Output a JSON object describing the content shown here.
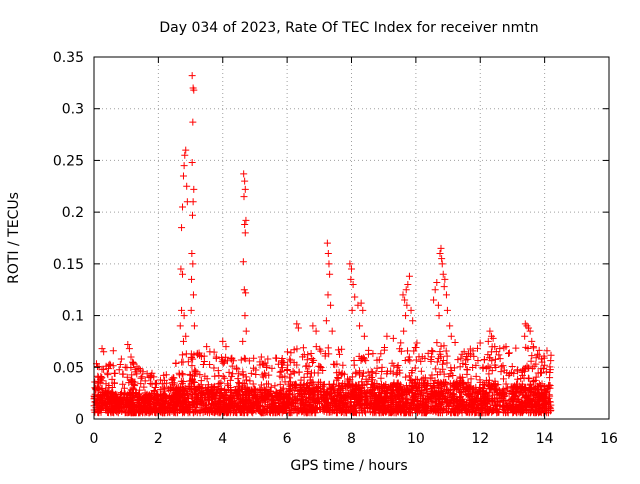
{
  "chart_data": {
    "type": "scatter",
    "title": "Day 034 of 2023, Rate Of TEC Index for receiver nmtn",
    "xlabel": "GPS time / hours",
    "ylabel": "ROTI / TECUs",
    "xlim": [
      0,
      16
    ],
    "ylim": [
      0,
      0.35
    ],
    "xticks": [
      0,
      2,
      4,
      6,
      8,
      10,
      12,
      14,
      16
    ],
    "yticks": [
      0,
      0.05,
      0.1,
      0.15,
      0.2,
      0.25,
      0.3,
      0.35
    ],
    "xtick_labels": [
      "0",
      "2",
      "4",
      "6",
      "8",
      "10",
      "12",
      "14",
      "16"
    ],
    "ytick_labels": [
      "0",
      "0.05",
      "0.1",
      "0.15",
      "0.2",
      "0.25",
      "0.3",
      "0.35"
    ],
    "grid": true,
    "marker": "+",
    "color": "#ff0000",
    "series": [
      {
        "name": "ROTI",
        "points": [
          [
            2.7,
            0.145
          ],
          [
            2.72,
            0.185
          ],
          [
            2.75,
            0.205
          ],
          [
            2.78,
            0.235
          ],
          [
            2.8,
            0.245
          ],
          [
            2.82,
            0.255
          ],
          [
            2.85,
            0.26
          ],
          [
            2.88,
            0.225
          ],
          [
            2.9,
            0.21
          ],
          [
            2.75,
            0.14
          ],
          [
            2.72,
            0.105
          ],
          [
            2.8,
            0.1
          ],
          [
            2.68,
            0.09
          ],
          [
            2.85,
            0.08
          ],
          [
            2.78,
            0.075
          ],
          [
            3.05,
            0.332
          ],
          [
            3.08,
            0.32
          ],
          [
            3.1,
            0.318
          ],
          [
            3.07,
            0.287
          ],
          [
            3.05,
            0.248
          ],
          [
            3.1,
            0.222
          ],
          [
            3.08,
            0.21
          ],
          [
            3.06,
            0.197
          ],
          [
            3.04,
            0.16
          ],
          [
            3.07,
            0.15
          ],
          [
            3.03,
            0.135
          ],
          [
            3.09,
            0.12
          ],
          [
            3.02,
            0.105
          ],
          [
            3.12,
            0.09
          ],
          [
            4.65,
            0.237
          ],
          [
            4.68,
            0.23
          ],
          [
            4.7,
            0.222
          ],
          [
            4.66,
            0.215
          ],
          [
            4.72,
            0.192
          ],
          [
            4.68,
            0.188
          ],
          [
            4.7,
            0.18
          ],
          [
            4.64,
            0.152
          ],
          [
            4.67,
            0.125
          ],
          [
            4.71,
            0.122
          ],
          [
            4.69,
            0.1
          ],
          [
            4.73,
            0.085
          ],
          [
            4.62,
            0.075
          ],
          [
            7.25,
            0.17
          ],
          [
            7.28,
            0.16
          ],
          [
            7.3,
            0.15
          ],
          [
            7.32,
            0.14
          ],
          [
            7.27,
            0.12
          ],
          [
            7.35,
            0.11
          ],
          [
            7.22,
            0.095
          ],
          [
            7.4,
            0.085
          ],
          [
            7.95,
            0.15
          ],
          [
            8.0,
            0.145
          ],
          [
            7.98,
            0.135
          ],
          [
            8.05,
            0.13
          ],
          [
            8.1,
            0.118
          ],
          [
            8.02,
            0.105
          ],
          [
            8.2,
            0.11
          ],
          [
            8.3,
            0.112
          ],
          [
            8.35,
            0.105
          ],
          [
            8.25,
            0.09
          ],
          [
            8.4,
            0.08
          ],
          [
            9.6,
            0.12
          ],
          [
            9.65,
            0.115
          ],
          [
            9.7,
            0.125
          ],
          [
            9.75,
            0.13
          ],
          [
            9.8,
            0.138
          ],
          [
            9.72,
            0.11
          ],
          [
            9.68,
            0.1
          ],
          [
            9.85,
            0.105
          ],
          [
            9.9,
            0.095
          ],
          [
            9.62,
            0.085
          ],
          [
            10.6,
            0.125
          ],
          [
            10.65,
            0.132
          ],
          [
            10.55,
            0.115
          ],
          [
            10.7,
            0.11
          ],
          [
            10.75,
            0.16
          ],
          [
            10.78,
            0.165
          ],
          [
            10.8,
            0.155
          ],
          [
            10.82,
            0.15
          ],
          [
            10.85,
            0.14
          ],
          [
            10.9,
            0.135
          ],
          [
            10.88,
            0.128
          ],
          [
            10.95,
            0.12
          ],
          [
            10.72,
            0.1
          ],
          [
            10.98,
            0.105
          ],
          [
            11.05,
            0.09
          ],
          [
            11.1,
            0.08
          ],
          [
            12.3,
            0.085
          ],
          [
            12.35,
            0.08
          ],
          [
            12.4,
            0.078
          ],
          [
            12.25,
            0.075
          ],
          [
            12.45,
            0.07
          ],
          [
            13.4,
            0.092
          ],
          [
            13.45,
            0.09
          ],
          [
            13.5,
            0.088
          ],
          [
            13.55,
            0.085
          ],
          [
            13.38,
            0.08
          ],
          [
            13.6,
            0.075
          ],
          [
            13.65,
            0.07
          ],
          [
            0.25,
            0.068
          ],
          [
            0.3,
            0.065
          ],
          [
            0.6,
            0.066
          ],
          [
            1.05,
            0.072
          ],
          [
            1.1,
            0.068
          ],
          [
            1.15,
            0.06
          ],
          [
            1.2,
            0.055
          ],
          [
            0.85,
            0.058
          ],
          [
            3.5,
            0.07
          ],
          [
            3.6,
            0.065
          ],
          [
            3.8,
            0.06
          ],
          [
            4.0,
            0.075
          ],
          [
            4.1,
            0.07
          ],
          [
            5.2,
            0.06
          ],
          [
            5.4,
            0.058
          ],
          [
            6.3,
            0.092
          ],
          [
            6.35,
            0.088
          ],
          [
            6.8,
            0.09
          ],
          [
            6.9,
            0.085
          ],
          [
            9.1,
            0.08
          ],
          [
            9.3,
            0.078
          ],
          [
            11.5,
            0.065
          ],
          [
            11.7,
            0.062
          ],
          [
            12.8,
            0.07
          ],
          [
            13.9,
            0.058
          ],
          [
            14.0,
            0.052
          ]
        ],
        "dense_band": {
          "x_range": [
            0,
            14.2
          ],
          "segments": [
            {
              "x": [
                0.0,
                1.6
              ],
              "y_typ": 0.022,
              "y_max": 0.055
            },
            {
              "x": [
                1.6,
                2.5
              ],
              "y_typ": 0.02,
              "y_max": 0.045
            },
            {
              "x": [
                2.5,
                4.0
              ],
              "y_typ": 0.028,
              "y_max": 0.065
            },
            {
              "x": [
                4.0,
                6.0
              ],
              "y_typ": 0.025,
              "y_max": 0.06
            },
            {
              "x": [
                6.0,
                9.5
              ],
              "y_typ": 0.03,
              "y_max": 0.07
            },
            {
              "x": [
                9.5,
                12.0
              ],
              "y_typ": 0.032,
              "y_max": 0.075
            },
            {
              "x": [
                12.0,
                14.2
              ],
              "y_typ": 0.03,
              "y_max": 0.07
            }
          ]
        }
      }
    ]
  }
}
